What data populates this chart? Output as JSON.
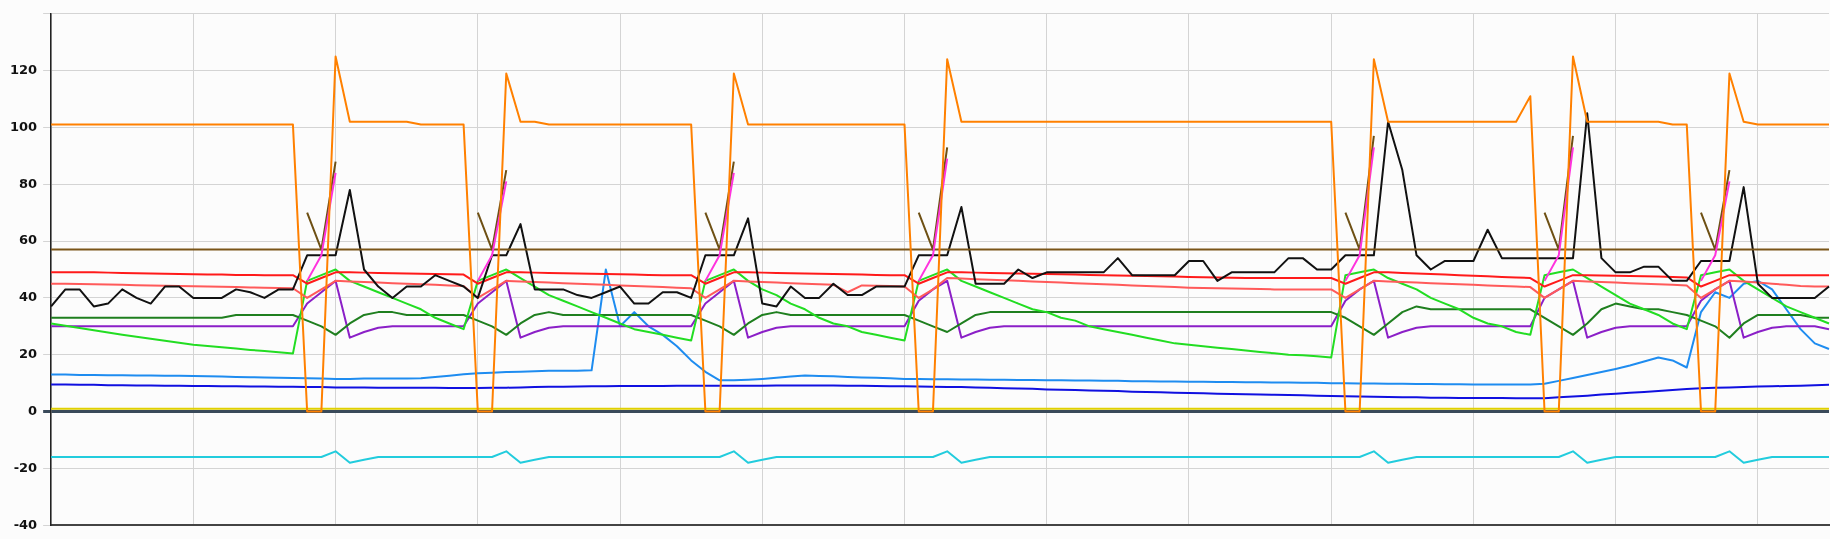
{
  "chart_data": {
    "type": "line",
    "grid": true,
    "tick_labels": "y",
    "marker": "none",
    "line_style": "solid",
    "categories": [
      null,
      null,
      null,
      null,
      null,
      null,
      null,
      null,
      null,
      null,
      null,
      null,
      null,
      null,
      null,
      null,
      null,
      null,
      null,
      null,
      null,
      null,
      null,
      null,
      null,
      null,
      null,
      null,
      null,
      null,
      null,
      null,
      null,
      null,
      null,
      null,
      null,
      null,
      null,
      null,
      null,
      null,
      null,
      null,
      null,
      null,
      null,
      null,
      null,
      null,
      null,
      null,
      null,
      null,
      null,
      null,
      null,
      null,
      null,
      null,
      null,
      null,
      null,
      null,
      null,
      null,
      null,
      null,
      null,
      null,
      null,
      null,
      null,
      null,
      null,
      null,
      null,
      null,
      null,
      null,
      null,
      null,
      null,
      null,
      null,
      null,
      null,
      null,
      null,
      null,
      null,
      null,
      null,
      null,
      null,
      null,
      null,
      null,
      null,
      null,
      null,
      null,
      null,
      null,
      null,
      null,
      null,
      null,
      null,
      null,
      null,
      null,
      null,
      null,
      null,
      null,
      null,
      null,
      null,
      null,
      null,
      null,
      null,
      null,
      null,
      null
    ],
    "ylim": [
      -40,
      140
    ],
    "yticks": [
      -40,
      -20,
      0,
      20,
      40,
      60,
      80,
      100,
      120,
      {
        "value": 140,
        "label": null
      }
    ],
    "series": [
      {
        "color": "#e0d000",
        "values": [
          1,
          1,
          1,
          1,
          1,
          1,
          1,
          1,
          1,
          1,
          1,
          1,
          1,
          1,
          1,
          1,
          1,
          1,
          1,
          1,
          1,
          1,
          1,
          1,
          1,
          1,
          1,
          1,
          1,
          1,
          1,
          1,
          1,
          1,
          1,
          1,
          1,
          1,
          1,
          1,
          1,
          1,
          1,
          1,
          1,
          1,
          1,
          1,
          1,
          1,
          1,
          1,
          1,
          1,
          1,
          1,
          1,
          1,
          1,
          1,
          1,
          1,
          1,
          1,
          1,
          1,
          1,
          1,
          1,
          1,
          1,
          1,
          1,
          1,
          1,
          1,
          1,
          1,
          1,
          1,
          1,
          1,
          1,
          1,
          1,
          1,
          1,
          1,
          1,
          1,
          1,
          1,
          1,
          1,
          1,
          1,
          1,
          1,
          1,
          1,
          1,
          1,
          1,
          1,
          1,
          1,
          1,
          1,
          1,
          1,
          1,
          1,
          1,
          1,
          1,
          1,
          1,
          1,
          1,
          1,
          1,
          1,
          1,
          1,
          1,
          1
        ]
      },
      {
        "color": "#22ccdd",
        "values": [
          -16,
          -16,
          -16,
          -16,
          -16,
          -16,
          -16,
          -16,
          -16,
          -16,
          -16,
          -16,
          -16,
          -16,
          -16,
          -16,
          -16,
          -16,
          -16,
          -16,
          -14,
          -18,
          -17,
          -16,
          -16,
          -16,
          -16,
          -16,
          -16,
          -16,
          -16,
          -16,
          -14,
          -18,
          -17,
          -16,
          -16,
          -16,
          -16,
          -16,
          -16,
          -16,
          -16,
          -16,
          -16,
          -16,
          -16,
          -16,
          -14,
          -18,
          -17,
          -16,
          -16,
          -16,
          -16,
          -16,
          -16,
          -16,
          -16,
          -16,
          -16,
          -16,
          -16,
          -14,
          -18,
          -17,
          -16,
          -16,
          -16,
          -16,
          -16,
          -16,
          -16,
          -16,
          -16,
          -16,
          -16,
          -16,
          -16,
          -16,
          -16,
          -16,
          -16,
          -16,
          -16,
          -16,
          -16,
          -16,
          -16,
          -16,
          -16,
          -16,
          -16,
          -14,
          -18,
          -17,
          -16,
          -16,
          -16,
          -16,
          -16,
          -16,
          -16,
          -16,
          -16,
          -16,
          -16,
          -14,
          -18,
          -17,
          -16,
          -16,
          -16,
          -16,
          -16,
          -16,
          -16,
          -16,
          -14,
          -18,
          -17,
          -16,
          -16,
          -16,
          -16,
          -16
        ]
      },
      {
        "color": "#1010e0",
        "values": [
          9.5,
          9.5,
          9.4,
          9.4,
          9.3,
          9.3,
          9.2,
          9.2,
          9.1,
          9.1,
          9.0,
          9.0,
          8.9,
          8.9,
          8.8,
          8.8,
          8.7,
          8.7,
          8.6,
          8.6,
          8.5,
          8.5,
          8.5,
          8.4,
          8.4,
          8.4,
          8.4,
          8.4,
          8.3,
          8.3,
          8.3,
          8.4,
          8.4,
          8.5,
          8.6,
          8.7,
          8.7,
          8.8,
          8.9,
          8.9,
          9.0,
          9.0,
          9.0,
          9.0,
          9.1,
          9.1,
          9.1,
          9.1,
          9.1,
          9.1,
          9.1,
          9.2,
          9.2,
          9.2,
          9.2,
          9.2,
          9.1,
          9.1,
          9.0,
          8.9,
          8.9,
          8.8,
          8.7,
          8.6,
          8.6,
          8.5,
          8.4,
          8.2,
          8.1,
          8.0,
          7.8,
          7.7,
          7.6,
          7.4,
          7.3,
          7.2,
          7.0,
          6.9,
          6.8,
          6.6,
          6.5,
          6.4,
          6.3,
          6.2,
          6.1,
          6.0,
          5.9,
          5.8,
          5.7,
          5.6,
          5.5,
          5.4,
          5.3,
          5.2,
          5.1,
          5.0,
          5.0,
          4.9,
          4.9,
          4.8,
          4.8,
          4.8,
          4.8,
          4.7,
          4.7,
          4.7,
          5.0,
          5.3,
          5.6,
          6.0,
          6.3,
          6.6,
          6.9,
          7.2,
          7.6,
          7.9,
          8.2,
          8.4,
          8.5,
          8.6,
          8.8,
          8.9,
          9.0,
          9.1,
          9.3,
          9.4
        ]
      },
      {
        "color": "#1e8cf0",
        "values": [
          13,
          13,
          12.9,
          12.9,
          12.8,
          12.8,
          12.7,
          12.7,
          12.6,
          12.6,
          12.5,
          12.4,
          12.3,
          12.2,
          12.1,
          12,
          11.9,
          11.8,
          11.7,
          11.6,
          11.5,
          11.5,
          11.6,
          11.6,
          11.6,
          11.6,
          11.7,
          12.2,
          12.6,
          13.1,
          13.5,
          13.7,
          13.9,
          14,
          14.2,
          14.4,
          14.4,
          14.4,
          14.5,
          50,
          30,
          35,
          30,
          27,
          23,
          18,
          14,
          11,
          11,
          11.2,
          11.5,
          11.9,
          12.3,
          12.7,
          12.5,
          12.4,
          12.2,
          12,
          11.9,
          11.7,
          11.5,
          11.5,
          11.4,
          11.4,
          11.3,
          11.3,
          11.2,
          11.2,
          11.1,
          11.1,
          11,
          11,
          10.9,
          10.9,
          10.8,
          10.8,
          10.7,
          10.7,
          10.6,
          10.6,
          10.5,
          10.5,
          10.4,
          10.4,
          10.3,
          10.3,
          10.2,
          10.2,
          10.1,
          10.1,
          10,
          10,
          9.9,
          9.9,
          9.8,
          9.8,
          9.7,
          9.7,
          9.6,
          9.6,
          9.5,
          9.5,
          9.5,
          9.5,
          9.5,
          9.8,
          10.8,
          11.8,
          12.9,
          13.9,
          15,
          16.2,
          17.6,
          19,
          18,
          15.5,
          35,
          42,
          40,
          45,
          46,
          43,
          36,
          29,
          24,
          22
        ]
      },
      {
        "color": "#8b1fc7",
        "values": [
          30,
          30,
          30,
          30,
          30,
          30,
          30,
          30,
          30,
          30,
          30,
          30,
          30,
          30,
          30,
          30,
          30,
          30,
          38,
          42,
          46,
          26,
          28,
          29.5,
          30,
          30,
          30,
          30,
          30,
          30,
          38,
          42,
          46,
          26,
          28,
          29.5,
          30,
          30,
          30,
          30,
          30,
          30,
          30,
          30,
          30,
          30,
          38,
          42,
          46,
          26,
          28,
          29.5,
          30,
          30,
          30,
          30,
          30,
          30,
          30,
          30,
          30,
          39,
          43,
          46,
          26,
          28,
          29.5,
          30,
          30,
          30,
          30,
          30,
          30,
          30,
          30,
          30,
          30,
          30,
          30,
          30,
          30,
          30,
          30,
          30,
          30,
          30,
          30,
          30,
          30,
          30,
          30,
          39,
          43,
          46,
          26,
          28,
          29.5,
          30,
          30,
          30,
          30,
          30,
          30,
          30,
          30,
          40,
          43,
          46,
          26,
          28,
          29.5,
          30,
          30,
          30,
          30,
          30,
          39,
          43,
          46,
          26,
          28,
          29.5,
          30,
          30,
          30,
          29
        ]
      },
      {
        "color": "#1f7f1f",
        "values": [
          33,
          33,
          33,
          33,
          33,
          33,
          33,
          33,
          33,
          33,
          33,
          33,
          33,
          34,
          34,
          34,
          34,
          34,
          32,
          30,
          27,
          31,
          34,
          35,
          35,
          34,
          34,
          34,
          34,
          34,
          32,
          30,
          27,
          31,
          34,
          35,
          34,
          34,
          34,
          34,
          34,
          34,
          34,
          34,
          34,
          34,
          32,
          30,
          27,
          31,
          34,
          35,
          34,
          34,
          34,
          34,
          34,
          34,
          34,
          34,
          34,
          32,
          30,
          28,
          31,
          34,
          35,
          35,
          35,
          35,
          35,
          35,
          35,
          35,
          35,
          35,
          35,
          35,
          35,
          35,
          35,
          35,
          35,
          35,
          35,
          35,
          35,
          35,
          35,
          35,
          35,
          33,
          30,
          27,
          31,
          35,
          37,
          36,
          36,
          36,
          36,
          36,
          36,
          36,
          36,
          33,
          30,
          27,
          31,
          36,
          38,
          37,
          36,
          36,
          35,
          34,
          32,
          30,
          26,
          31,
          34,
          34,
          34,
          34,
          33,
          33
        ]
      },
      {
        "color": "#22dd22",
        "values": [
          31,
          30.2,
          29.4,
          28.6,
          27.8,
          27,
          26.3,
          25.6,
          24.9,
          24.2,
          23.5,
          23.1,
          22.6,
          22.2,
          21.7,
          21.3,
          20.9,
          20.4,
          46,
          48,
          50,
          46,
          44,
          42,
          40,
          38,
          36,
          33,
          31,
          29,
          46,
          48,
          50,
          47,
          44,
          41,
          39,
          37,
          35,
          33,
          31,
          29,
          28,
          27,
          26,
          25,
          46,
          48,
          50,
          46,
          43,
          41,
          38,
          36,
          33,
          31,
          30,
          28,
          27,
          26,
          25,
          46,
          48,
          50,
          46,
          44,
          42,
          40,
          38,
          36,
          35,
          33,
          32,
          30,
          29,
          28,
          27,
          26,
          25,
          24,
          23.5,
          23,
          22.5,
          22,
          21.5,
          21,
          20.5,
          20,
          19.8,
          19.5,
          19,
          48,
          49,
          50,
          47,
          45,
          43,
          40,
          38,
          36,
          33,
          31,
          30,
          28,
          27,
          48,
          49,
          50,
          47,
          44,
          41,
          38,
          36,
          34,
          31,
          29,
          48,
          49,
          50,
          46,
          43,
          40,
          37,
          35,
          33,
          31
        ]
      },
      {
        "color": "#ff5a5a",
        "values": [
          45,
          45,
          44.9,
          44.8,
          44.7,
          44.6,
          44.5,
          44.4,
          44.3,
          44.2,
          44.1,
          44,
          43.9,
          43.8,
          43.7,
          43.6,
          43.5,
          43.4,
          40,
          43,
          46,
          45.8,
          45.6,
          45.4,
          45.2,
          45,
          44.8,
          44.6,
          44.4,
          44.2,
          40,
          43,
          46,
          45.8,
          45.6,
          45.4,
          45.2,
          45,
          44.8,
          44.6,
          44.4,
          44.2,
          44,
          43.8,
          43.6,
          43.4,
          40,
          43,
          46,
          45.8,
          45.6,
          45.4,
          45.2,
          45,
          44.8,
          44.6,
          42,
          44.4,
          44.3,
          44.2,
          44,
          40,
          43,
          47,
          46.8,
          46.6,
          46.4,
          46.2,
          46,
          45.8,
          45.6,
          45.4,
          45.2,
          45,
          44.8,
          44.6,
          44.4,
          44.2,
          44,
          43.8,
          43.6,
          43.5,
          43.4,
          43.3,
          43.2,
          43.1,
          43,
          43,
          43,
          43,
          43,
          40,
          43,
          46,
          45.8,
          45.6,
          45.4,
          45.2,
          45,
          44.8,
          44.6,
          44.4,
          44.2,
          44,
          43.8,
          40,
          43,
          46,
          45.8,
          45.6,
          45.4,
          45.2,
          45,
          44.8,
          44.6,
          44.4,
          40,
          43,
          46,
          45.8,
          45.4,
          45,
          44.6,
          44.2,
          44,
          44
        ]
      },
      {
        "color": "#ff1a1a",
        "values": [
          49,
          49,
          49,
          49,
          48.9,
          48.8,
          48.7,
          48.6,
          48.5,
          48.4,
          48.3,
          48.2,
          48.2,
          48.1,
          48.1,
          48,
          48,
          48,
          45,
          47,
          49,
          49,
          48.9,
          48.8,
          48.7,
          48.6,
          48.5,
          48.4,
          48.3,
          48.2,
          45,
          47,
          49,
          49,
          48.9,
          48.8,
          48.7,
          48.6,
          48.5,
          48.4,
          48.3,
          48.2,
          48.1,
          48,
          48,
          48,
          45,
          47,
          49,
          49,
          48.9,
          48.8,
          48.7,
          48.6,
          48.5,
          48.4,
          48.3,
          48.2,
          48.1,
          48,
          48,
          45,
          47,
          49,
          49,
          48.9,
          48.8,
          48.7,
          48.6,
          48.5,
          48.4,
          48.3,
          48.2,
          48.1,
          48,
          47.9,
          47.8,
          47.7,
          47.6,
          47.5,
          47.4,
          47.3,
          47.2,
          47.1,
          47,
          47,
          47,
          47,
          47,
          47,
          47,
          45,
          47,
          49,
          49,
          48.8,
          48.6,
          48.4,
          48.2,
          48,
          47.8,
          47.6,
          47.4,
          47.2,
          47,
          44,
          46,
          48,
          48,
          47.9,
          47.8,
          47.7,
          47.6,
          47.5,
          47.4,
          47.2,
          44,
          46,
          48,
          48,
          48,
          48,
          48,
          48,
          48,
          48
        ]
      },
      {
        "color": "#111111",
        "values": [
          37,
          43,
          43,
          37,
          38,
          43,
          40,
          38,
          44,
          44,
          40,
          40,
          40,
          43,
          42,
          40,
          43,
          43,
          55,
          55,
          55,
          78,
          50,
          44,
          40,
          44,
          44,
          48,
          46,
          44,
          40,
          55,
          55,
          66,
          43,
          43,
          43,
          41,
          40,
          42,
          44,
          38,
          38,
          42,
          42,
          40,
          55,
          55,
          55,
          68,
          38,
          37,
          44,
          40,
          40,
          45,
          41,
          41,
          44,
          44,
          44,
          55,
          55,
          55,
          72,
          45,
          45,
          45,
          50,
          47,
          49,
          49,
          49,
          49,
          49,
          54,
          48,
          48,
          48,
          48,
          53,
          53,
          46,
          49,
          49,
          49,
          49,
          54,
          54,
          50,
          50,
          55,
          55,
          55,
          102,
          85,
          55,
          50,
          53,
          53,
          53,
          64,
          54,
          54,
          54,
          54,
          54,
          54,
          105,
          54,
          49,
          49,
          51,
          51,
          46,
          46,
          53,
          53,
          53,
          79,
          45,
          40,
          40,
          40,
          40,
          44
        ]
      },
      {
        "color": "#7a5518",
        "values": [
          57,
          57,
          57,
          57,
          57,
          57,
          57,
          57,
          57,
          57,
          57,
          57,
          57,
          57,
          57,
          57,
          57,
          57,
          57,
          57,
          57,
          57,
          57,
          57,
          57,
          57,
          57,
          57,
          57,
          57,
          57,
          57,
          57,
          57,
          57,
          57,
          57,
          57,
          57,
          57,
          57,
          57,
          57,
          57,
          57,
          57,
          57,
          57,
          57,
          57,
          57,
          57,
          57,
          57,
          57,
          57,
          57,
          57,
          57,
          57,
          57,
          57,
          57,
          57,
          57,
          57,
          57,
          57,
          57,
          57,
          57,
          57,
          57,
          57,
          57,
          57,
          57,
          57,
          57,
          57,
          57,
          57,
          57,
          57,
          57,
          57,
          57,
          57,
          57,
          57,
          57,
          57,
          57,
          57,
          57,
          57,
          57,
          57,
          57,
          57,
          57,
          57,
          57,
          57,
          57,
          57,
          57,
          57,
          57,
          57,
          57,
          57,
          57,
          57,
          57,
          57,
          57,
          57,
          57,
          57,
          57,
          57,
          57,
          57,
          57,
          57
        ]
      },
      {
        "color": "#6e5014",
        "values": [
          null,
          null,
          null,
          null,
          null,
          null,
          null,
          null,
          null,
          null,
          null,
          null,
          null,
          null,
          null,
          null,
          null,
          null,
          70,
          57,
          88,
          null,
          null,
          null,
          null,
          null,
          null,
          null,
          null,
          null,
          70,
          57,
          85,
          null,
          null,
          null,
          null,
          null,
          null,
          null,
          null,
          null,
          null,
          null,
          null,
          null,
          70,
          57,
          88,
          null,
          null,
          null,
          null,
          null,
          null,
          null,
          null,
          null,
          null,
          null,
          null,
          70,
          57,
          93,
          null,
          null,
          null,
          null,
          null,
          null,
          null,
          null,
          null,
          null,
          null,
          null,
          null,
          null,
          null,
          null,
          null,
          null,
          null,
          null,
          null,
          null,
          null,
          null,
          null,
          null,
          null,
          70,
          57,
          97,
          null,
          null,
          null,
          null,
          null,
          null,
          null,
          null,
          null,
          null,
          null,
          70,
          57,
          97,
          null,
          null,
          null,
          null,
          null,
          null,
          null,
          null,
          70,
          57,
          85,
          null,
          null,
          null,
          null,
          null,
          null,
          null
        ]
      },
      {
        "color": "#ff33dd",
        "values": [
          null,
          null,
          null,
          null,
          null,
          null,
          null,
          null,
          null,
          null,
          null,
          null,
          null,
          null,
          null,
          null,
          null,
          null,
          46,
          55,
          84,
          null,
          null,
          null,
          null,
          null,
          null,
          null,
          null,
          null,
          46,
          55,
          81,
          null,
          null,
          null,
          null,
          null,
          null,
          null,
          null,
          null,
          null,
          null,
          null,
          null,
          46,
          55,
          84,
          null,
          null,
          null,
          null,
          null,
          null,
          null,
          null,
          null,
          null,
          null,
          null,
          46,
          55,
          89,
          null,
          null,
          null,
          null,
          null,
          null,
          null,
          null,
          null,
          null,
          null,
          null,
          null,
          null,
          null,
          null,
          null,
          null,
          null,
          null,
          null,
          null,
          null,
          null,
          null,
          null,
          null,
          46,
          55,
          93,
          null,
          null,
          null,
          null,
          null,
          null,
          null,
          null,
          null,
          null,
          null,
          46,
          55,
          93,
          null,
          null,
          null,
          null,
          null,
          null,
          null,
          null,
          46,
          55,
          81,
          null,
          null,
          null,
          null,
          null,
          null,
          null
        ]
      },
      {
        "color": "#ff8000",
        "values": [
          101,
          101,
          101,
          101,
          101,
          101,
          101,
          101,
          101,
          101,
          101,
          101,
          101,
          101,
          101,
          101,
          101,
          101,
          0,
          0,
          125,
          102,
          102,
          102,
          102,
          102,
          101,
          101,
          101,
          101,
          0,
          0,
          119,
          102,
          102,
          101,
          101,
          101,
          101,
          101,
          101,
          101,
          101,
          101,
          101,
          101,
          0,
          0,
          119,
          101,
          101,
          101,
          101,
          101,
          101,
          101,
          101,
          101,
          101,
          101,
          101,
          0,
          0,
          124,
          102,
          102,
          102,
          102,
          102,
          102,
          102,
          102,
          102,
          102,
          102,
          102,
          102,
          102,
          102,
          102,
          102,
          102,
          102,
          102,
          102,
          102,
          102,
          102,
          102,
          102,
          102,
          0,
          0,
          124,
          102,
          102,
          102,
          102,
          102,
          102,
          102,
          102,
          102,
          102,
          111,
          0,
          0,
          125,
          102,
          102,
          102,
          102,
          102,
          102,
          101,
          101,
          0,
          0,
          119,
          102,
          101,
          101,
          101,
          101,
          101,
          101
        ]
      }
    ]
  }
}
